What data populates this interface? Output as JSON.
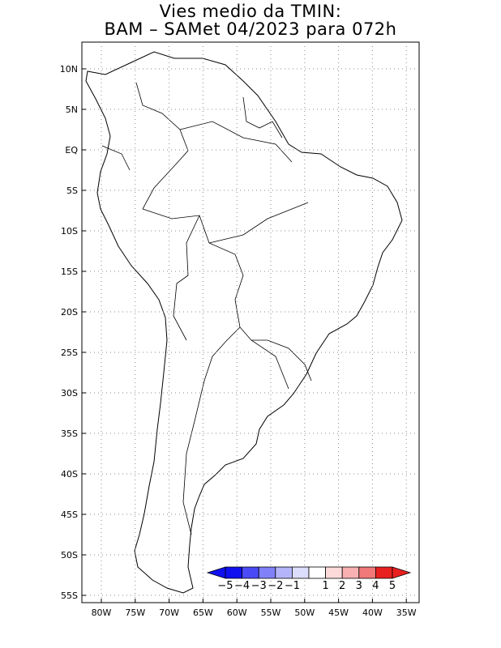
{
  "title": {
    "line1": "Vies medio da TMIN:",
    "line2": "BAM – SAMet 04/2023  para 072h"
  },
  "map": {
    "lat_labels": [
      "10N",
      "5N",
      "EQ",
      "5S",
      "10S",
      "15S",
      "20S",
      "25S",
      "30S",
      "35S",
      "40S",
      "45S",
      "50S",
      "55S"
    ],
    "lon_labels": [
      "80W",
      "75W",
      "70W",
      "65W",
      "60W",
      "55W",
      "50W",
      "45W",
      "40W",
      "35W"
    ]
  },
  "colorbar": {
    "labels": [
      "−5",
      "−4",
      "−3",
      "−2",
      "−1",
      "1",
      "2",
      "3",
      "4",
      "5"
    ],
    "colors": [
      "#1010f0",
      "#4a4af6",
      "#8080f8",
      "#b4b4fa",
      "#dcdcfc",
      "#ffffff",
      "#fcdada",
      "#f8b0b0",
      "#f07878",
      "#e82020"
    ]
  }
}
